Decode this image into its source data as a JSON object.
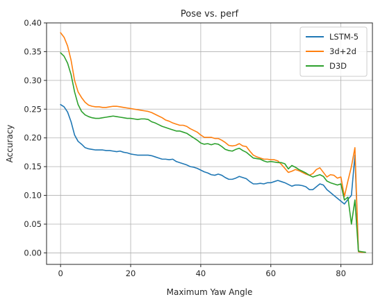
{
  "chart_data": {
    "type": "line",
    "title": "Pose vs. perf",
    "xlabel": "Maximum Yaw Angle",
    "ylabel": "Accuracy",
    "xlim": [
      -4,
      89
    ],
    "ylim": [
      -0.02,
      0.4
    ],
    "xticks": [
      0,
      20,
      40,
      60,
      80
    ],
    "yticks": [
      0.0,
      0.05,
      0.1,
      0.15,
      0.2,
      0.25,
      0.3,
      0.35,
      0.4
    ],
    "grid": true,
    "legend_position": "top-right",
    "x": [
      0,
      1,
      2,
      3,
      4,
      5,
      6,
      7,
      8,
      9,
      10,
      11,
      12,
      13,
      14,
      15,
      16,
      17,
      18,
      19,
      20,
      21,
      22,
      23,
      24,
      25,
      26,
      27,
      28,
      29,
      30,
      31,
      32,
      33,
      34,
      35,
      36,
      37,
      38,
      39,
      40,
      41,
      42,
      43,
      44,
      45,
      46,
      47,
      48,
      49,
      50,
      51,
      52,
      53,
      54,
      55,
      56,
      57,
      58,
      59,
      60,
      61,
      62,
      63,
      64,
      65,
      66,
      67,
      68,
      69,
      70,
      71,
      72,
      73,
      74,
      75,
      76,
      77,
      78,
      79,
      80,
      81,
      82,
      83,
      84,
      85,
      86,
      87
    ],
    "series": [
      {
        "name": "LSTM-5",
        "color": "#1f77b4",
        "values": [
          0.258,
          0.254,
          0.245,
          0.228,
          0.205,
          0.194,
          0.189,
          0.183,
          0.181,
          0.18,
          0.179,
          0.179,
          0.179,
          0.178,
          0.178,
          0.177,
          0.176,
          0.177,
          0.175,
          0.174,
          0.172,
          0.171,
          0.17,
          0.17,
          0.17,
          0.17,
          0.169,
          0.167,
          0.165,
          0.163,
          0.163,
          0.162,
          0.163,
          0.159,
          0.157,
          0.155,
          0.153,
          0.15,
          0.149,
          0.147,
          0.144,
          0.141,
          0.139,
          0.136,
          0.135,
          0.137,
          0.135,
          0.131,
          0.128,
          0.128,
          0.13,
          0.133,
          0.131,
          0.129,
          0.124,
          0.12,
          0.12,
          0.121,
          0.12,
          0.122,
          0.122,
          0.124,
          0.126,
          0.124,
          0.122,
          0.119,
          0.116,
          0.118,
          0.118,
          0.117,
          0.115,
          0.11,
          0.11,
          0.115,
          0.12,
          0.118,
          0.11,
          0.105,
          0.1,
          0.095,
          0.09,
          0.085,
          0.093,
          0.1,
          0.17,
          0.002,
          0.001,
          0.001
        ]
      },
      {
        "name": "3d+2d",
        "color": "#ff7f0e",
        "values": [
          0.383,
          0.375,
          0.36,
          0.335,
          0.3,
          0.28,
          0.27,
          0.262,
          0.257,
          0.255,
          0.254,
          0.254,
          0.253,
          0.253,
          0.254,
          0.255,
          0.255,
          0.254,
          0.253,
          0.252,
          0.251,
          0.25,
          0.249,
          0.248,
          0.247,
          0.246,
          0.244,
          0.241,
          0.238,
          0.235,
          0.231,
          0.229,
          0.226,
          0.224,
          0.222,
          0.222,
          0.22,
          0.216,
          0.213,
          0.21,
          0.205,
          0.201,
          0.201,
          0.201,
          0.199,
          0.199,
          0.196,
          0.192,
          0.187,
          0.186,
          0.187,
          0.19,
          0.186,
          0.185,
          0.177,
          0.17,
          0.167,
          0.165,
          0.163,
          0.163,
          0.162,
          0.162,
          0.16,
          0.154,
          0.147,
          0.14,
          0.142,
          0.145,
          0.143,
          0.14,
          0.137,
          0.135,
          0.138,
          0.145,
          0.148,
          0.14,
          0.132,
          0.136,
          0.135,
          0.13,
          0.132,
          0.098,
          0.125,
          0.15,
          0.183,
          0.002,
          0.001,
          0.001
        ]
      },
      {
        "name": "D3D",
        "color": "#2ca02c",
        "values": [
          0.348,
          0.342,
          0.33,
          0.31,
          0.28,
          0.258,
          0.246,
          0.24,
          0.237,
          0.235,
          0.234,
          0.234,
          0.235,
          0.236,
          0.237,
          0.238,
          0.237,
          0.236,
          0.235,
          0.234,
          0.234,
          0.233,
          0.232,
          0.233,
          0.233,
          0.232,
          0.228,
          0.226,
          0.223,
          0.22,
          0.218,
          0.216,
          0.214,
          0.212,
          0.212,
          0.21,
          0.208,
          0.204,
          0.2,
          0.196,
          0.191,
          0.189,
          0.19,
          0.188,
          0.19,
          0.189,
          0.185,
          0.18,
          0.178,
          0.177,
          0.18,
          0.182,
          0.178,
          0.175,
          0.17,
          0.165,
          0.164,
          0.163,
          0.16,
          0.158,
          0.159,
          0.158,
          0.157,
          0.157,
          0.155,
          0.146,
          0.152,
          0.149,
          0.145,
          0.142,
          0.139,
          0.135,
          0.132,
          0.134,
          0.136,
          0.133,
          0.125,
          0.122,
          0.12,
          0.118,
          0.12,
          0.092,
          0.097,
          0.05,
          0.092,
          0.003,
          0.002,
          0.001
        ]
      }
    ]
  }
}
